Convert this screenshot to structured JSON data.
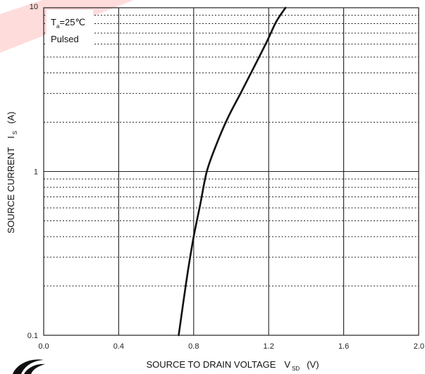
{
  "chart_data": {
    "type": "line",
    "x_scale": "linear",
    "y_scale": "log",
    "xlim": [
      0.0,
      2.0
    ],
    "ylim": [
      0.1,
      10
    ],
    "x_ticks": [
      0.0,
      0.4,
      0.8,
      1.2,
      1.6,
      2.0
    ],
    "x_tick_labels": [
      "0.0",
      "0.4",
      "0.8",
      "1.2",
      "1.6",
      "2.0"
    ],
    "y_ticks": [
      0.1,
      1,
      10
    ],
    "y_tick_labels": [
      "0.1",
      "1",
      "10"
    ],
    "grid": true,
    "xlabel": "SOURCE TO DRAIN VOLTAGE",
    "xlabel_symbol": "V",
    "xlabel_symbol_sub": "SD",
    "xlabel_unit": "(V)",
    "ylabel": "SOURCE CURRENT",
    "ylabel_symbol": "I",
    "ylabel_symbol_sub": "S",
    "ylabel_unit": "(A)",
    "annotation": {
      "line1_symbol": "T",
      "line1_sub": "a",
      "line1_value": "=25℃",
      "line2": "Pulsed"
    },
    "series": [
      {
        "x": [
          0.72,
          0.745,
          0.77,
          0.8,
          0.835,
          0.87,
          0.92,
          0.98,
          1.05,
          1.12,
          1.19,
          1.24,
          1.29
        ],
        "y": [
          0.1,
          0.16,
          0.25,
          0.4,
          0.63,
          1.0,
          1.45,
          2.1,
          3.0,
          4.3,
          6.2,
          8.2,
          10
        ]
      }
    ],
    "colors": {
      "curve": "#111111",
      "grid": "#222222",
      "watermark": "#ff3b3b"
    }
  }
}
